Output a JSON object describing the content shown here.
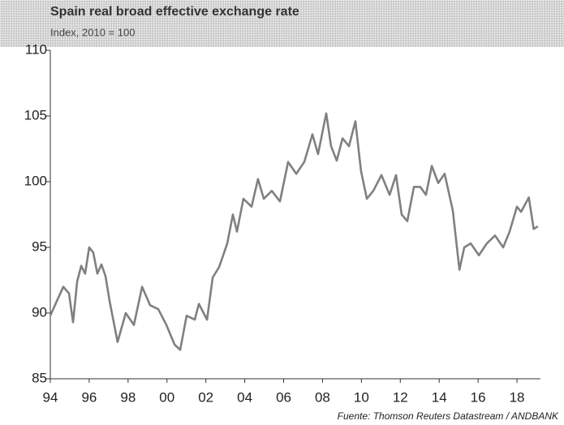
{
  "chart_data": {
    "type": "line",
    "title": "Spain real broad effective exchange rate",
    "subtitle": "Index, 2010 = 100",
    "source": "Fuente: Thomson Reuters Datastream / ANDBANK",
    "xlim": [
      1994,
      2019.2
    ],
    "ylim": [
      85,
      110
    ],
    "yticks": [
      85,
      90,
      95,
      100,
      105,
      110
    ],
    "xticks": [
      {
        "value": 1994,
        "label": "94"
      },
      {
        "value": 1996,
        "label": "96"
      },
      {
        "value": 1998,
        "label": "98"
      },
      {
        "value": 2000,
        "label": "00"
      },
      {
        "value": 2002,
        "label": "02"
      },
      {
        "value": 2004,
        "label": "04"
      },
      {
        "value": 2006,
        "label": "06"
      },
      {
        "value": 2008,
        "label": "08"
      },
      {
        "value": 2010,
        "label": "10"
      },
      {
        "value": 2012,
        "label": "12"
      },
      {
        "value": 2014,
        "label": "14"
      },
      {
        "value": 2016,
        "label": "16"
      },
      {
        "value": 2018,
        "label": "18"
      }
    ],
    "x": [
      1994.0,
      1994.33,
      1994.67,
      1994.96,
      1995.17,
      1995.38,
      1995.59,
      1995.79,
      1996.0,
      1996.21,
      1996.42,
      1996.63,
      1996.84,
      1997.05,
      1997.46,
      1997.88,
      1998.3,
      1998.72,
      1999.13,
      1999.55,
      1999.97,
      2000.39,
      2000.68,
      2001.01,
      2001.43,
      2001.64,
      2002.06,
      2002.35,
      2002.68,
      2003.1,
      2003.39,
      2003.6,
      2003.93,
      2004.35,
      2004.68,
      2004.98,
      2005.39,
      2005.81,
      2006.23,
      2006.65,
      2007.06,
      2007.48,
      2007.77,
      2008.19,
      2008.44,
      2008.73,
      2009.03,
      2009.36,
      2009.69,
      2009.98,
      2010.28,
      2010.61,
      2011.03,
      2011.45,
      2011.78,
      2012.07,
      2012.36,
      2012.7,
      2013.03,
      2013.32,
      2013.62,
      2013.95,
      2014.28,
      2014.7,
      2015.04,
      2015.29,
      2015.62,
      2016.04,
      2016.45,
      2016.87,
      2017.29,
      2017.62,
      2018.0,
      2018.21,
      2018.61,
      2018.86,
      2019.08
    ],
    "series": [
      {
        "color": "#808080",
        "values": [
          89.8,
          90.9,
          92.0,
          91.5,
          89.3,
          92.4,
          93.6,
          93.0,
          95.0,
          94.6,
          93.0,
          93.7,
          92.8,
          90.9,
          87.8,
          90.0,
          89.1,
          92.0,
          90.6,
          90.3,
          89.1,
          87.6,
          87.2,
          89.8,
          89.5,
          90.7,
          89.5,
          92.7,
          93.5,
          95.3,
          97.5,
          96.2,
          98.7,
          98.1,
          100.2,
          98.7,
          99.3,
          98.5,
          101.5,
          100.6,
          101.5,
          103.6,
          102.1,
          105.2,
          102.7,
          101.6,
          103.3,
          102.7,
          104.6,
          100.8,
          98.7,
          99.3,
          100.5,
          99.0,
          100.5,
          97.5,
          97.0,
          99.6,
          99.6,
          99.0,
          101.2,
          99.9,
          100.6,
          97.8,
          93.3,
          95.0,
          95.3,
          94.4,
          95.3,
          95.9,
          95.0,
          96.2,
          98.1,
          97.7,
          98.8,
          96.4,
          96.6
        ]
      }
    ]
  }
}
